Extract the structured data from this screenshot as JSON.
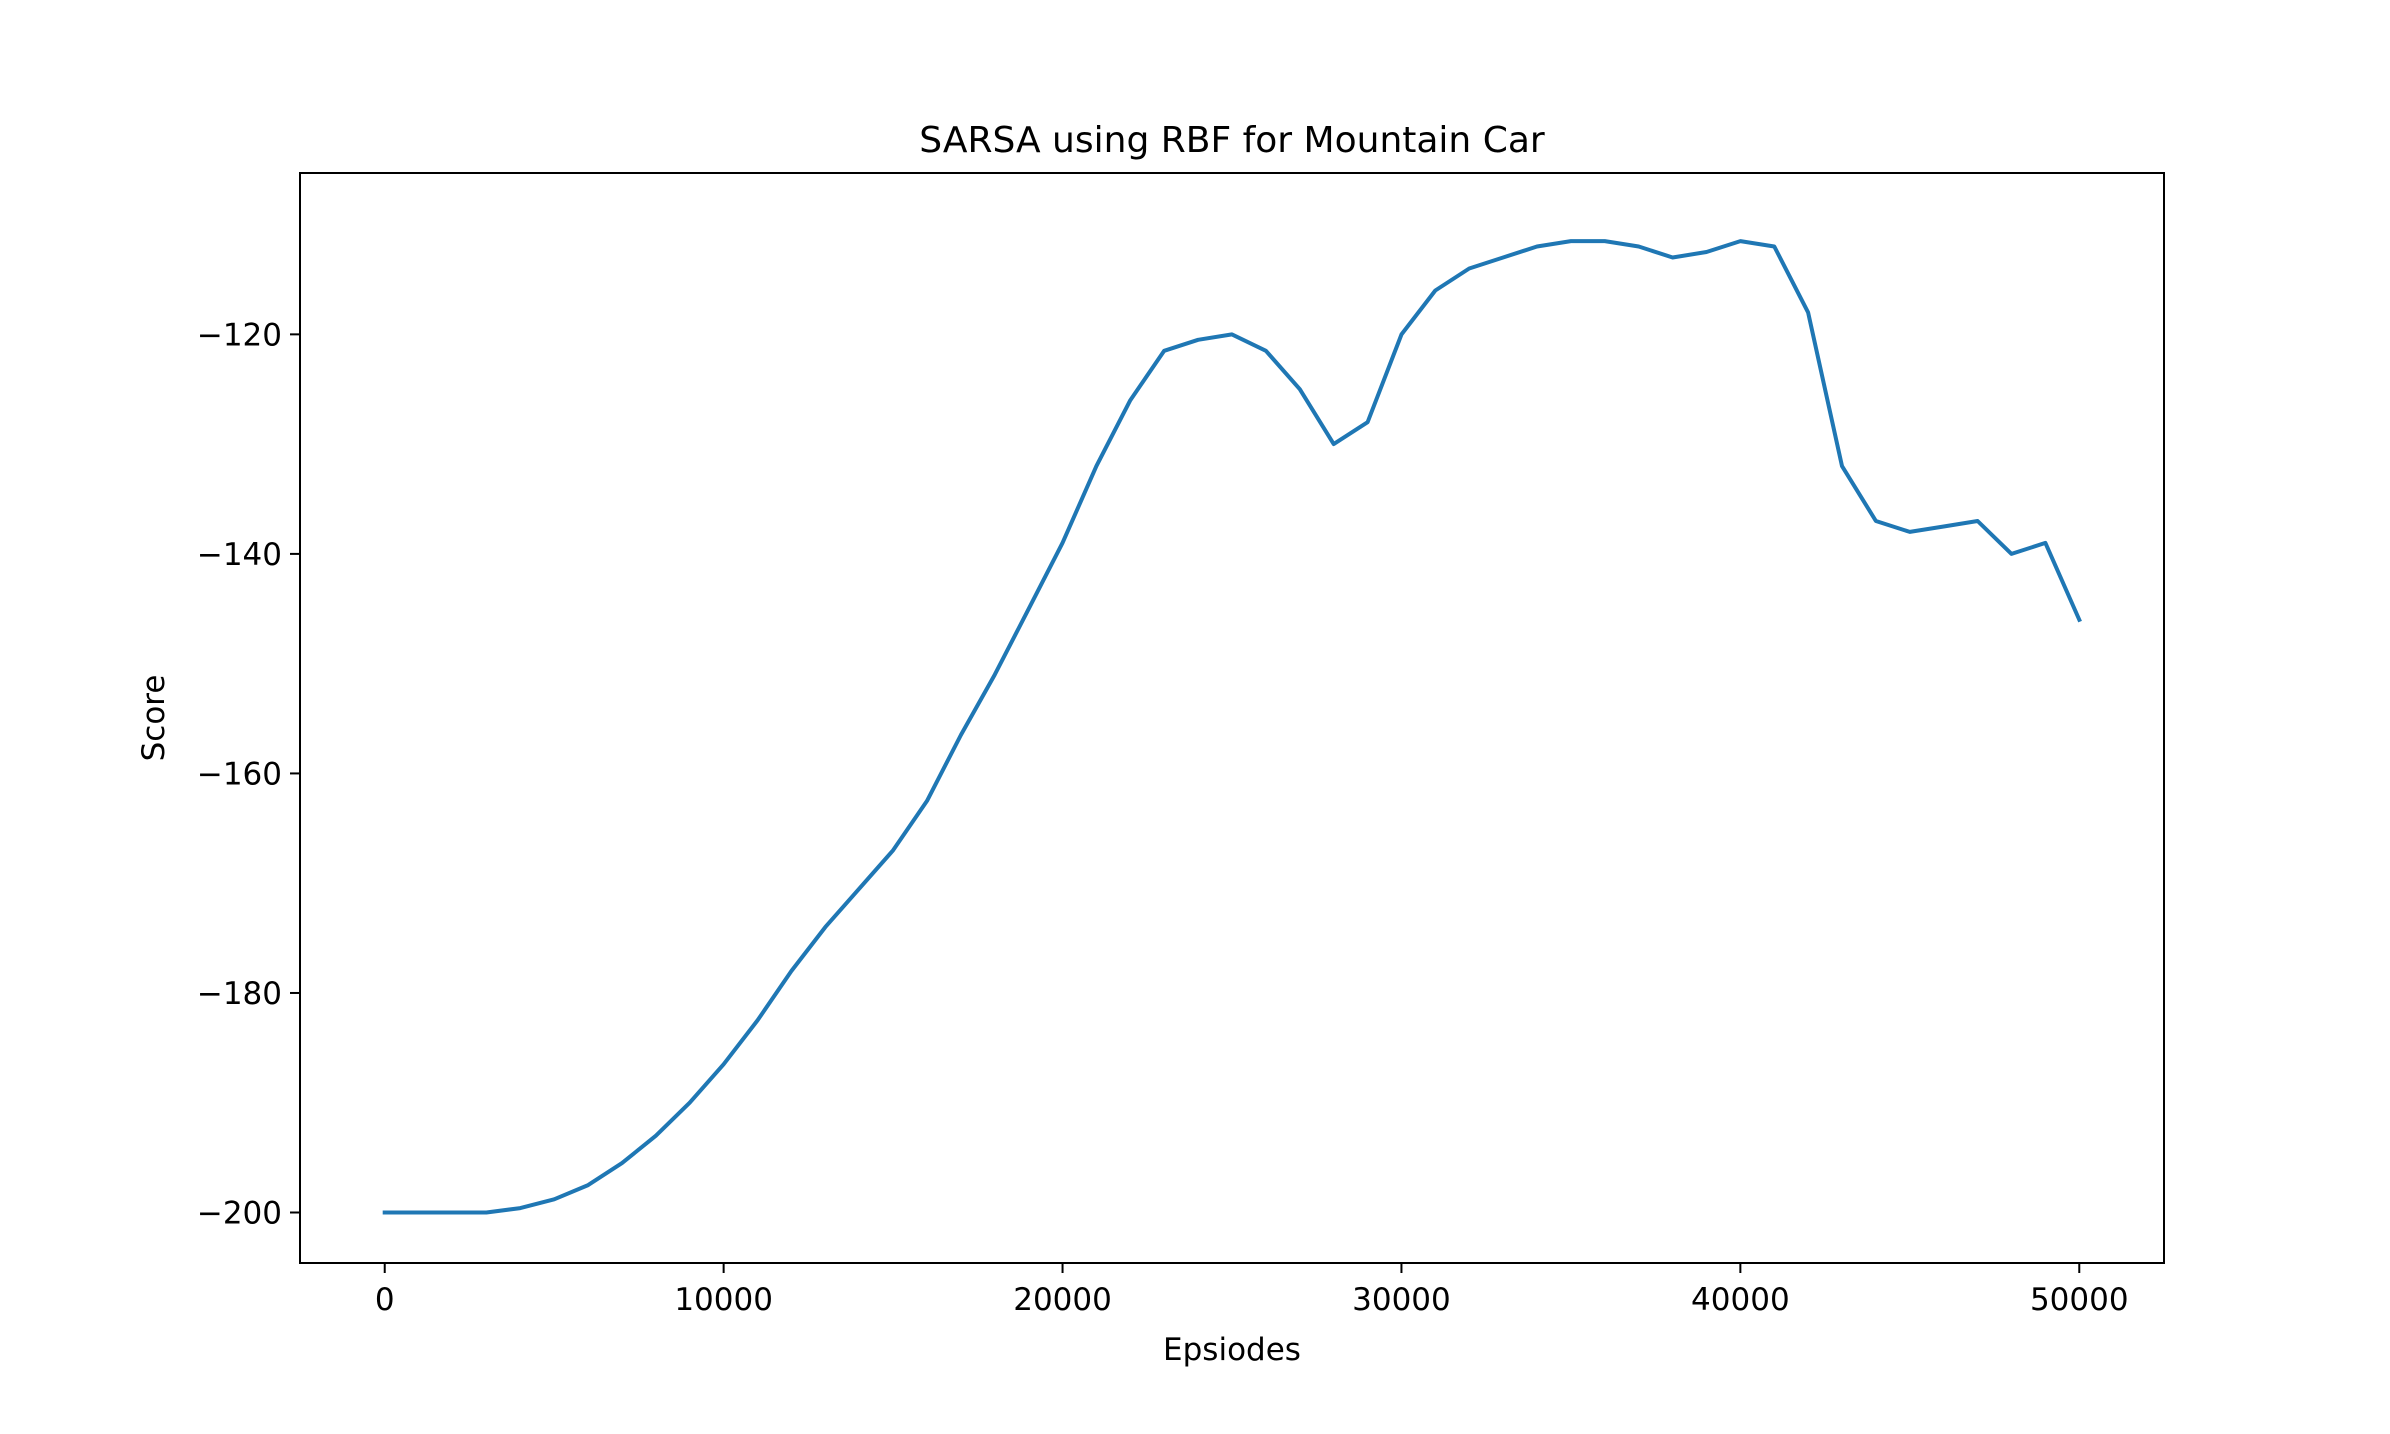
{
  "chart_data": {
    "type": "line",
    "title": "SARSA using RBF for Mountain Car",
    "xlabel": "Epsiodes",
    "ylabel": "Score",
    "xlim": [
      -2500,
      52500
    ],
    "ylim": [
      -204.6,
      -105.3
    ],
    "xticks": [
      0,
      10000,
      20000,
      30000,
      40000,
      50000
    ],
    "xtick_labels": [
      "0",
      "10000",
      "20000",
      "30000",
      "40000",
      "50000"
    ],
    "yticks": [
      -200,
      -180,
      -160,
      -140,
      -120
    ],
    "ytick_labels": [
      "−200",
      "−180",
      "−160",
      "−140",
      "−120"
    ],
    "grid": false,
    "legend": "none",
    "series": [
      {
        "color": "#1f77b4",
        "x": [
          0,
          1000,
          2000,
          3000,
          4000,
          5000,
          6000,
          7000,
          8000,
          9000,
          10000,
          11000,
          12000,
          13000,
          14000,
          15000,
          16000,
          17000,
          18000,
          19000,
          20000,
          21000,
          22000,
          23000,
          24000,
          25000,
          26000,
          27000,
          28000,
          29000,
          30000,
          31000,
          32000,
          33000,
          34000,
          35000,
          36000,
          37000,
          38000,
          39000,
          40000,
          41000,
          42000,
          43000,
          44000,
          45000,
          46000,
          47000,
          48000,
          49000,
          50000
        ],
        "y": [
          -200,
          -200,
          -200,
          -200,
          -199.6,
          -198.8,
          -197.5,
          -195.5,
          -193.0,
          -190.0,
          -186.5,
          -182.5,
          -178.0,
          -174.0,
          -170.5,
          -167.0,
          -162.5,
          -156.5,
          -151.0,
          -145.0,
          -139.0,
          -132.0,
          -126.0,
          -121.5,
          -120.5,
          -120.0,
          -121.5,
          -125.0,
          -130.0,
          -128.0,
          -120.0,
          -116.0,
          -114.0,
          -113.0,
          -112.0,
          -111.5,
          -111.5,
          -112.0,
          -113.0,
          -112.5,
          -111.5,
          -112.0,
          -118.0,
          -132.0,
          -137.0,
          -138.0,
          -137.5,
          -137.0,
          -140.0,
          -139.0,
          -146.0
        ]
      }
    ]
  }
}
